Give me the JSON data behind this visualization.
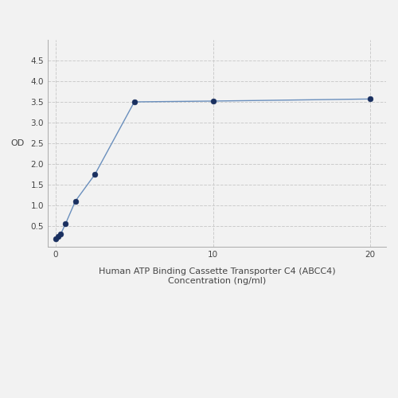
{
  "x": [
    0,
    0.156,
    0.313,
    0.625,
    1.25,
    2.5,
    5,
    10,
    20
  ],
  "y": [
    0.2,
    0.25,
    0.3,
    0.55,
    1.1,
    1.75,
    3.5,
    3.52,
    3.57
  ],
  "line_color": "#6a8fbd",
  "marker_color": "#1a3060",
  "marker_size": 5,
  "line_width": 1.0,
  "xlabel_line1": "Human ATP Binding Cassette Transporter C4 (ABCC4)",
  "xlabel_line2": "Concentration (ng/ml)",
  "ylabel": "OD",
  "xlim": [
    -0.5,
    21
  ],
  "ylim": [
    0,
    5
  ],
  "yticks": [
    0.5,
    1,
    1.5,
    2,
    2.5,
    3,
    3.5,
    4,
    4.5
  ],
  "xticks": [
    0,
    10,
    20
  ],
  "grid_color": "#cccccc",
  "background_color": "#f2f2f2",
  "font_color": "#444444",
  "xlabel_fontsize": 8,
  "ylabel_fontsize": 8,
  "tick_fontsize": 7.5
}
